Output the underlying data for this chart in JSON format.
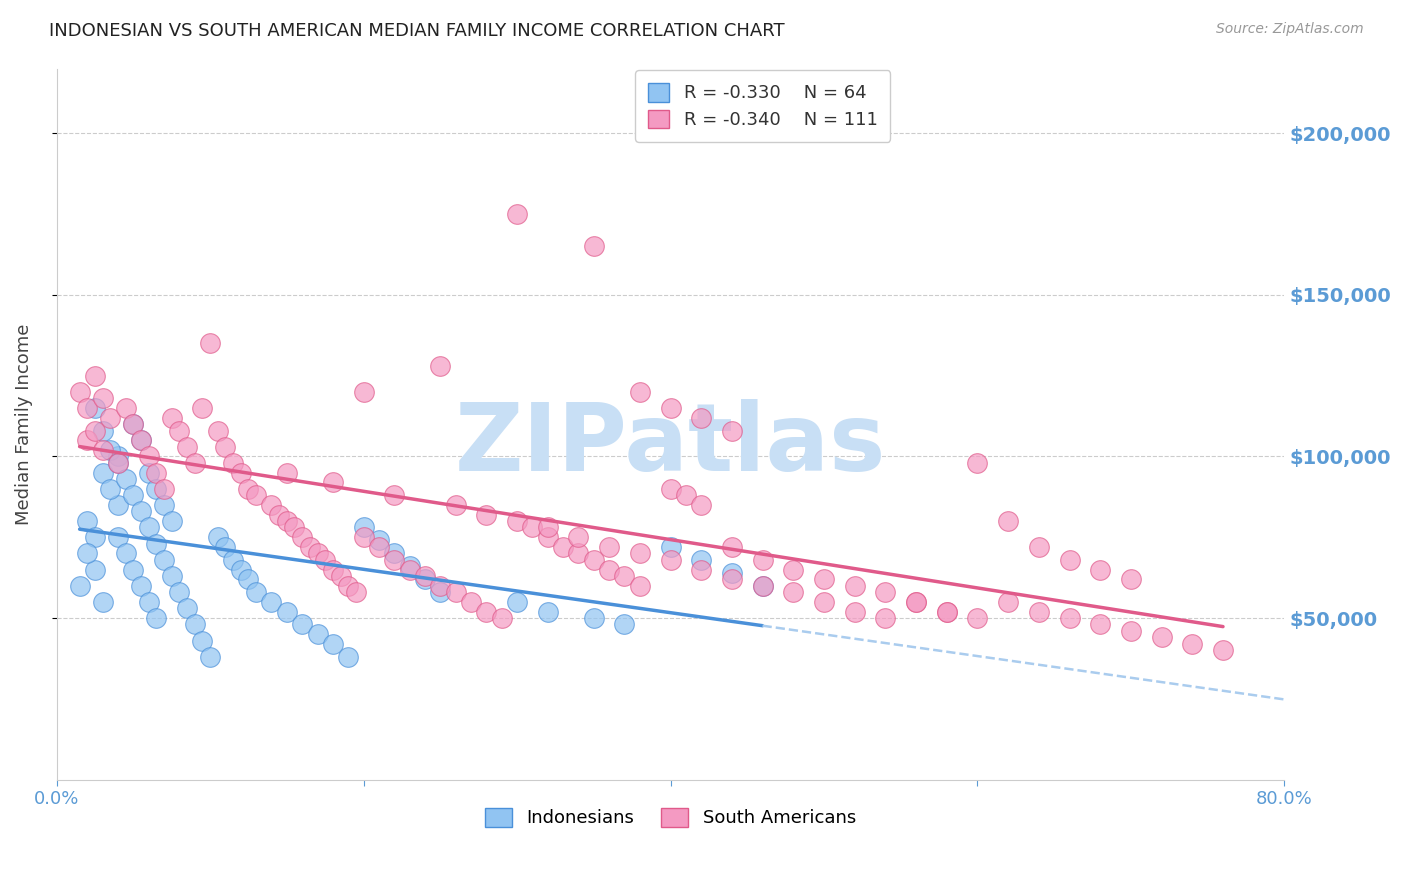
{
  "title": "INDONESIAN VS SOUTH AMERICAN MEDIAN FAMILY INCOME CORRELATION CHART",
  "source": "Source: ZipAtlas.com",
  "ylabel": "Median Family Income",
  "xmin": 0.0,
  "xmax": 0.8,
  "ymin": 0,
  "ymax": 220000,
  "yticks": [
    50000,
    100000,
    150000,
    200000
  ],
  "ytick_labels": [
    "$50,000",
    "$100,000",
    "$150,000",
    "$200,000"
  ],
  "legend_r1": "R = -0.330",
  "legend_n1": "N = 64",
  "legend_r2": "R = -0.340",
  "legend_n2": "N = 111",
  "color_indonesian": "#91c4f2",
  "color_south_american": "#f49ac2",
  "color_trend_indonesian": "#4a90d9",
  "color_trend_south_american": "#e05a8a",
  "color_dashed": "#aaccee",
  "color_ytick_labels": "#5b9bd5",
  "color_xtick_labels": "#5b9bd5",
  "watermark": "ZIPatlas",
  "watermark_color": "#c8dff5",
  "indonesian_x": [
    0.02,
    0.03,
    0.025,
    0.04,
    0.015,
    0.03,
    0.025,
    0.02,
    0.035,
    0.04,
    0.05,
    0.055,
    0.06,
    0.065,
    0.07,
    0.075,
    0.04,
    0.045,
    0.05,
    0.055,
    0.06,
    0.065,
    0.025,
    0.03,
    0.035,
    0.04,
    0.045,
    0.05,
    0.055,
    0.06,
    0.065,
    0.07,
    0.075,
    0.08,
    0.085,
    0.09,
    0.095,
    0.1,
    0.105,
    0.11,
    0.115,
    0.12,
    0.125,
    0.13,
    0.14,
    0.15,
    0.16,
    0.17,
    0.18,
    0.19,
    0.2,
    0.21,
    0.22,
    0.23,
    0.24,
    0.25,
    0.3,
    0.32,
    0.35,
    0.37,
    0.4,
    0.42,
    0.44,
    0.46
  ],
  "indonesian_y": [
    80000,
    95000,
    75000,
    85000,
    60000,
    55000,
    65000,
    70000,
    90000,
    100000,
    110000,
    105000,
    95000,
    90000,
    85000,
    80000,
    75000,
    70000,
    65000,
    60000,
    55000,
    50000,
    115000,
    108000,
    102000,
    98000,
    93000,
    88000,
    83000,
    78000,
    73000,
    68000,
    63000,
    58000,
    53000,
    48000,
    43000,
    38000,
    75000,
    72000,
    68000,
    65000,
    62000,
    58000,
    55000,
    52000,
    48000,
    45000,
    42000,
    38000,
    78000,
    74000,
    70000,
    66000,
    62000,
    58000,
    55000,
    52000,
    50000,
    48000,
    72000,
    68000,
    64000,
    60000
  ],
  "south_american_x": [
    0.015,
    0.02,
    0.025,
    0.03,
    0.035,
    0.02,
    0.025,
    0.03,
    0.04,
    0.045,
    0.05,
    0.055,
    0.06,
    0.065,
    0.07,
    0.075,
    0.08,
    0.085,
    0.09,
    0.095,
    0.1,
    0.105,
    0.11,
    0.115,
    0.12,
    0.125,
    0.13,
    0.14,
    0.145,
    0.15,
    0.155,
    0.16,
    0.165,
    0.17,
    0.175,
    0.18,
    0.185,
    0.19,
    0.195,
    0.2,
    0.21,
    0.22,
    0.23,
    0.24,
    0.25,
    0.26,
    0.27,
    0.28,
    0.29,
    0.3,
    0.31,
    0.32,
    0.33,
    0.34,
    0.35,
    0.36,
    0.37,
    0.38,
    0.4,
    0.41,
    0.42,
    0.44,
    0.46,
    0.48,
    0.5,
    0.52,
    0.54,
    0.56,
    0.58,
    0.6,
    0.62,
    0.64,
    0.66,
    0.68,
    0.7,
    0.2,
    0.25,
    0.3,
    0.35,
    0.38,
    0.4,
    0.42,
    0.44,
    0.15,
    0.18,
    0.22,
    0.26,
    0.28,
    0.32,
    0.34,
    0.36,
    0.38,
    0.4,
    0.42,
    0.44,
    0.46,
    0.48,
    0.5,
    0.52,
    0.54,
    0.56,
    0.58,
    0.6,
    0.62,
    0.64,
    0.66,
    0.68,
    0.7,
    0.72,
    0.74,
    0.76
  ],
  "south_american_y": [
    120000,
    115000,
    125000,
    118000,
    112000,
    105000,
    108000,
    102000,
    98000,
    115000,
    110000,
    105000,
    100000,
    95000,
    90000,
    112000,
    108000,
    103000,
    98000,
    115000,
    135000,
    108000,
    103000,
    98000,
    95000,
    90000,
    88000,
    85000,
    82000,
    80000,
    78000,
    75000,
    72000,
    70000,
    68000,
    65000,
    63000,
    60000,
    58000,
    75000,
    72000,
    68000,
    65000,
    63000,
    60000,
    58000,
    55000,
    52000,
    50000,
    80000,
    78000,
    75000,
    72000,
    70000,
    68000,
    65000,
    63000,
    60000,
    90000,
    88000,
    85000,
    72000,
    68000,
    65000,
    62000,
    60000,
    58000,
    55000,
    52000,
    98000,
    80000,
    72000,
    68000,
    65000,
    62000,
    120000,
    128000,
    175000,
    165000,
    120000,
    115000,
    112000,
    108000,
    95000,
    92000,
    88000,
    85000,
    82000,
    78000,
    75000,
    72000,
    70000,
    68000,
    65000,
    62000,
    60000,
    58000,
    55000,
    52000,
    50000,
    55000,
    52000,
    50000,
    55000,
    52000,
    50000,
    48000,
    46000,
    44000,
    42000,
    40000
  ]
}
